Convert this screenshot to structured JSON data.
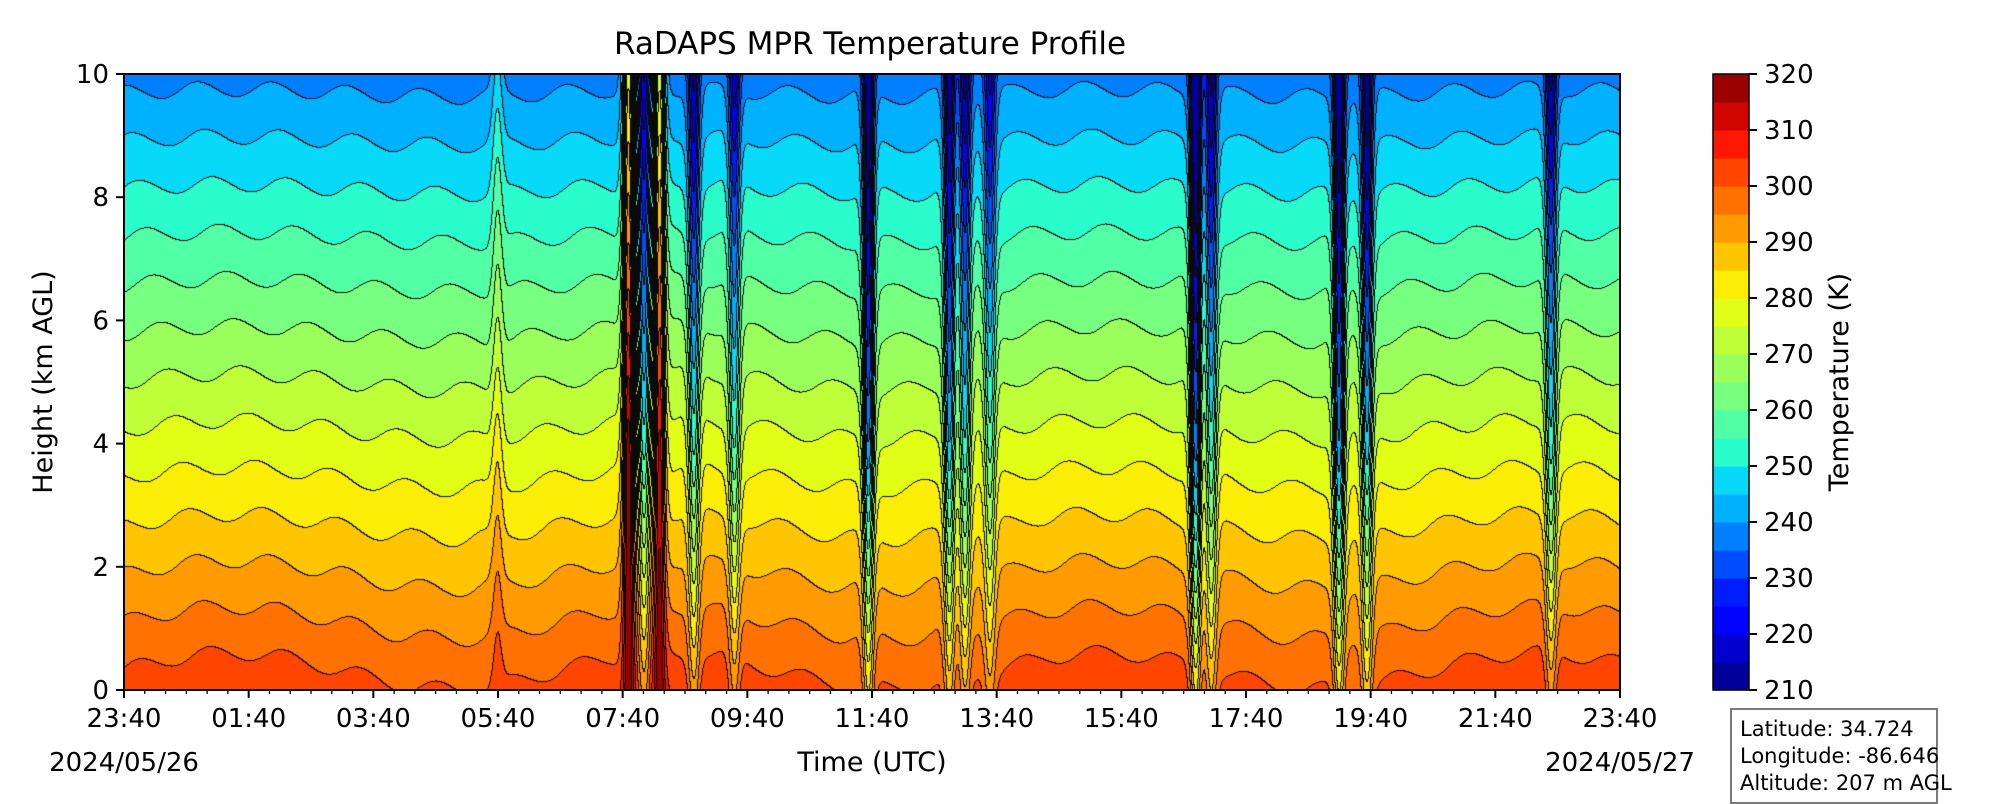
{
  "chart_data": {
    "type": "heatmap",
    "title": "RaDAPS MPR Temperature Profile",
    "xlabel": "Time (UTC)",
    "ylabel": "Height (km AGL)",
    "x_ticks": [
      "23:40",
      "01:40",
      "03:40",
      "05:40",
      "07:40",
      "09:40",
      "11:40",
      "13:40",
      "15:40",
      "17:40",
      "19:40",
      "21:40",
      "23:40"
    ],
    "x_range": [
      "2024/05/26 23:40",
      "2024/05/27 23:40"
    ],
    "x_range_hours": [
      0,
      24
    ],
    "start_date": "2024/05/26",
    "end_date": "2024/05/27",
    "y_ticks": [
      "0",
      "2",
      "4",
      "6",
      "8",
      "10"
    ],
    "ylim": [
      0,
      10
    ],
    "colorbar": {
      "label": "Temperature (K)",
      "min": 210,
      "max": 320,
      "step": 5,
      "tick_labels": [
        "210",
        "220",
        "230",
        "240",
        "250",
        "260",
        "270",
        "280",
        "290",
        "300",
        "310",
        "320"
      ],
      "colormap": "jet",
      "colors": [
        "#00007f",
        "#0000c4",
        "#0000ff",
        "#0020ff",
        "#0060ff",
        "#00a0ff",
        "#00d4ff",
        "#2cffca",
        "#5cff9a",
        "#8aff6c",
        "#b4ff42",
        "#e0ff16",
        "#ffea00",
        "#ffb400",
        "#ff8200",
        "#ff4c00",
        "#ff1600",
        "#c40000",
        "#7f0000"
      ]
    },
    "profile": {
      "surface_temp_K": 302,
      "lapse_rate_K_per_km": 6.4
    },
    "events": [
      {
        "time_h": 6.0,
        "height_range_km": [
          0,
          10
        ],
        "temp_anomaly_K": 8
      },
      {
        "time_h": 8.1,
        "height_range_km": [
          0,
          10
        ],
        "temp_anomaly_K": 40
      },
      {
        "time_h": 8.35,
        "height_range_km": [
          0,
          10
        ],
        "temp_anomaly_K": -25
      },
      {
        "time_h": 8.6,
        "height_range_km": [
          0,
          10
        ],
        "temp_anomaly_K": 35
      },
      {
        "time_h": 9.15,
        "height_range_km": [
          0,
          10
        ],
        "temp_anomaly_K": -25
      },
      {
        "time_h": 9.8,
        "height_range_km": [
          0,
          10
        ],
        "temp_anomaly_K": -22
      },
      {
        "time_h": 11.95,
        "height_range_km": [
          0,
          10
        ],
        "temp_anomaly_K": -35
      },
      {
        "time_h": 13.25,
        "height_range_km": [
          0,
          10
        ],
        "temp_anomaly_K": -30
      },
      {
        "time_h": 13.5,
        "height_range_km": [
          0,
          10
        ],
        "temp_anomaly_K": -25
      },
      {
        "time_h": 13.9,
        "height_range_km": [
          0,
          10
        ],
        "temp_anomaly_K": -20
      },
      {
        "time_h": 17.2,
        "height_range_km": [
          0,
          10
        ],
        "temp_anomaly_K": -40
      },
      {
        "time_h": 17.45,
        "height_range_km": [
          0,
          10
        ],
        "temp_anomaly_K": -25
      },
      {
        "time_h": 19.5,
        "height_range_km": [
          0,
          10
        ],
        "temp_anomaly_K": -35
      },
      {
        "time_h": 19.95,
        "height_range_km": [
          0,
          10
        ],
        "temp_anomaly_K": -30
      },
      {
        "time_h": 22.9,
        "height_range_km": [
          0,
          10
        ],
        "temp_anomaly_K": -25
      }
    ]
  },
  "station": {
    "latitude": "Latitude: 34.724",
    "longitude": "Longitude: -86.646",
    "altitude": "Altitude: 207 m AGL"
  }
}
